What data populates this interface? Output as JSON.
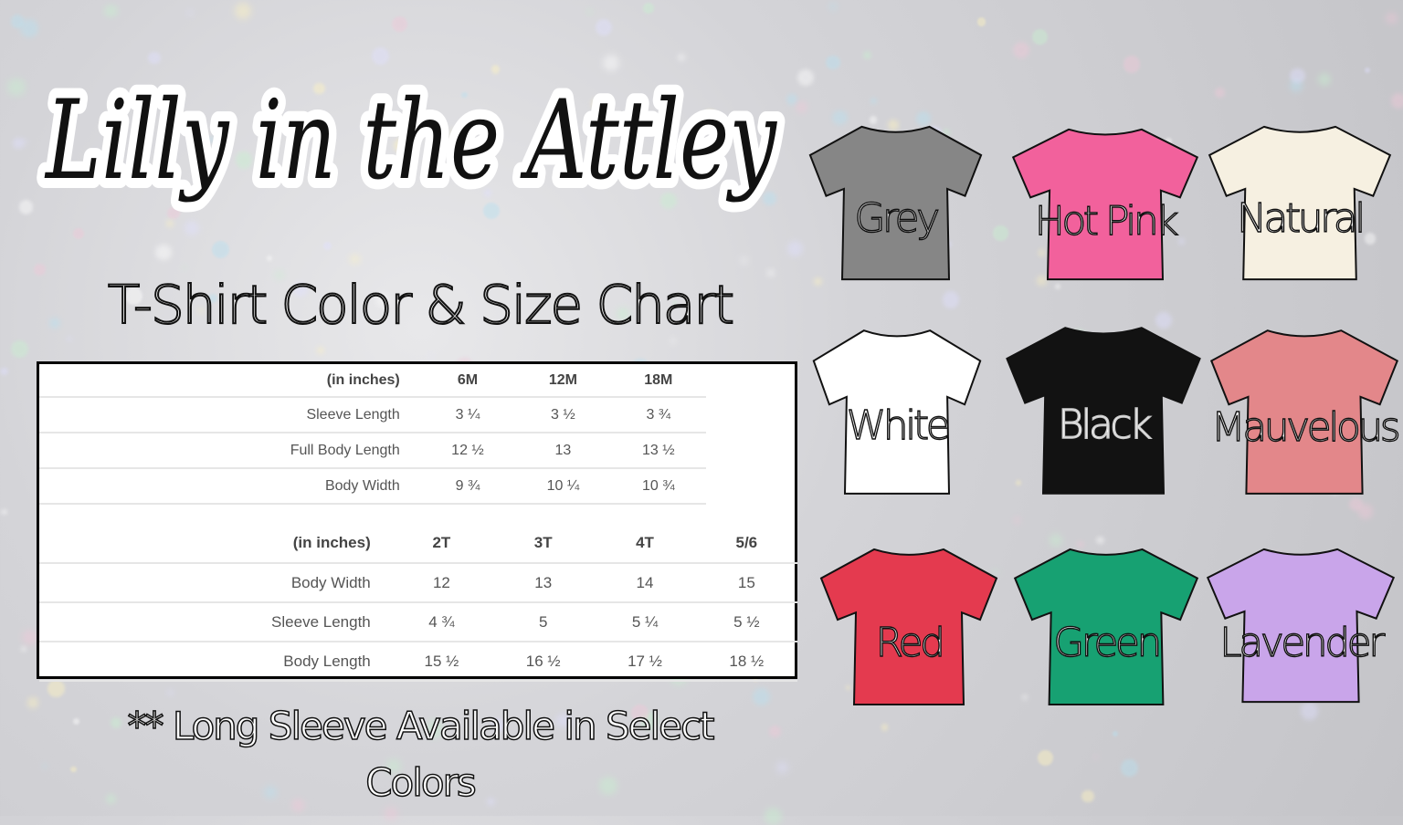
{
  "brand": {
    "logo_text": "Lilly in the Attley"
  },
  "subtitle": "T-Shirt Color & Size Chart",
  "size_chart": {
    "infant": {
      "headers": [
        "(in inches)",
        "6M",
        "12M",
        "18M"
      ],
      "rows": [
        {
          "label": "Sleeve Length",
          "values": [
            "3 ¼",
            "3 ½",
            "3 ¾"
          ]
        },
        {
          "label": "Full Body Length",
          "values": [
            "12 ½",
            "13",
            "13 ½"
          ]
        },
        {
          "label": "Body Width",
          "values": [
            "9 ¾",
            "10 ¼",
            "10 ¾"
          ]
        }
      ]
    },
    "toddler": {
      "headers": [
        "(in inches)",
        "2T",
        "3T",
        "4T",
        "5/6"
      ],
      "rows": [
        {
          "label": "Body Width",
          "values": [
            "12",
            "13",
            "14",
            "15"
          ]
        },
        {
          "label": "Sleeve Length",
          "values": [
            "4 ¾",
            "5",
            "5 ¼",
            "5 ½"
          ]
        },
        {
          "label": "Body Length",
          "values": [
            "15 ½",
            "16 ½",
            "17 ½",
            "18 ½"
          ]
        }
      ]
    }
  },
  "note": "** Long Sleeve Available in Select Colors",
  "colors": [
    {
      "name": "Grey",
      "hex": "#868686"
    },
    {
      "name": "Hot Pink",
      "hex": "#f2619c"
    },
    {
      "name": "Natural",
      "hex": "#f6f0e1"
    },
    {
      "name": "White",
      "hex": "#ffffff"
    },
    {
      "name": "Black",
      "hex": "#121212"
    },
    {
      "name": "Mauvelous",
      "hex": "#e3878a"
    },
    {
      "name": "Red",
      "hex": "#e43a4f"
    },
    {
      "name": "Green",
      "hex": "#17a172"
    },
    {
      "name": "Lavender",
      "hex": "#c9a5ea"
    }
  ]
}
